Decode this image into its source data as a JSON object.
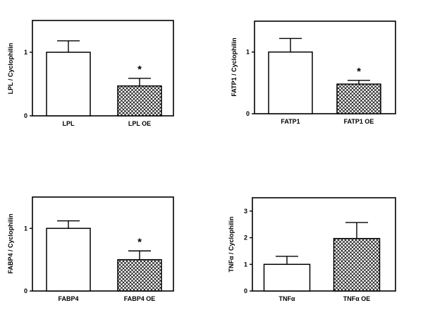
{
  "chart_data": [
    {
      "type": "bar",
      "categories": [
        "LPL",
        "LPL OE"
      ],
      "values": [
        1.0,
        0.47
      ],
      "errors": [
        0.18,
        0.12
      ],
      "significance": [
        "",
        "*"
      ],
      "ylabel": "LPL / Cyclophilin",
      "ylim": [
        0,
        1.5
      ],
      "yticks": [
        0,
        1
      ],
      "fills": [
        "open",
        "crosshatch"
      ]
    },
    {
      "type": "bar",
      "categories": [
        "FATP1",
        "FATP1 OE"
      ],
      "values": [
        1.0,
        0.48
      ],
      "errors": [
        0.22,
        0.06
      ],
      "significance": [
        "",
        "*"
      ],
      "ylabel": "FATP1 / Cyclophilin",
      "ylim": [
        0,
        1.5
      ],
      "yticks": [
        0,
        1
      ],
      "fills": [
        "open",
        "crosshatch"
      ]
    },
    {
      "type": "bar",
      "categories": [
        "FABP4",
        "FABP4 OE"
      ],
      "values": [
        1.0,
        0.5
      ],
      "errors": [
        0.12,
        0.14
      ],
      "significance": [
        "",
        "*"
      ],
      "ylabel": "FABP4 / Cyclophilin",
      "ylim": [
        0,
        1.5
      ],
      "yticks": [
        0,
        1
      ],
      "fills": [
        "open",
        "crosshatch"
      ]
    },
    {
      "type": "bar",
      "categories": [
        "TNFα",
        "TNFα OE"
      ],
      "values": [
        1.0,
        1.97
      ],
      "errors": [
        0.3,
        0.6
      ],
      "significance": [
        "",
        ""
      ],
      "ylabel": "TNFα / Cyclophilin",
      "ylim": [
        0,
        3.5
      ],
      "yticks": [
        0,
        1,
        2,
        3
      ],
      "fills": [
        "open",
        "crosshatch"
      ]
    }
  ]
}
